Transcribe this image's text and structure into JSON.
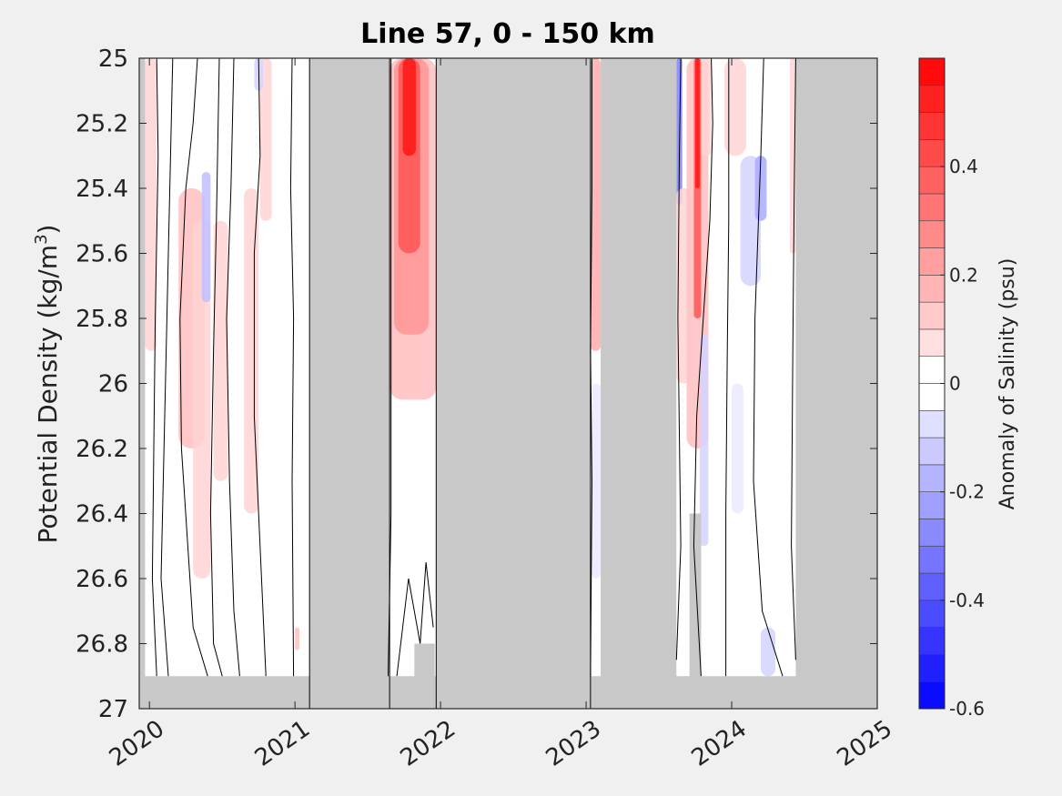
{
  "chart_data": {
    "type": "heatmap",
    "title": "Line 57, 0 - 150 km",
    "ylabel": "Potential Density (kg/m",
    "ylabel_sup": "3",
    "ylabel_close": ")",
    "xlim": [
      2019.93,
      2025.0
    ],
    "ylim": [
      25.0,
      27.0
    ],
    "y_reversed": true,
    "x_ticks": [
      2020,
      2021,
      2022,
      2023,
      2024,
      2025
    ],
    "x_tick_labels": [
      "2020",
      "2021",
      "2022",
      "2023",
      "2024",
      "2025"
    ],
    "y_ticks": [
      25,
      25.2,
      25.4,
      25.6,
      25.8,
      26,
      26.2,
      26.4,
      26.6,
      26.8,
      27
    ],
    "y_tick_labels": [
      "25",
      "25.2",
      "25.4",
      "25.6",
      "25.8",
      "26",
      "26.2",
      "26.4",
      "26.6",
      "26.8",
      "27"
    ],
    "colorbar": {
      "label": "Anomaly of Salinity (psu)",
      "range": [
        -0.6,
        0.6
      ],
      "step": 0.05,
      "ticks": [
        -0.6,
        -0.4,
        -0.2,
        0,
        0.2,
        0.4
      ],
      "tick_labels": [
        "-0.6",
        "-0.4",
        "-0.2",
        "0",
        "0.2",
        "0.4"
      ]
    },
    "colors": {
      "nodata": "#c8c8c8",
      "background": "#f0f0f0",
      "contour": "#000000"
    },
    "no_data_regions": [
      {
        "x": [
          2019.93,
          2025.0
        ],
        "y": [
          26.9,
          27.0
        ]
      },
      {
        "x": [
          2021.1,
          2021.65
        ],
        "y": [
          25.0,
          27.0
        ]
      },
      {
        "x": [
          2021.97,
          2023.03
        ],
        "y": [
          25.0,
          27.0
        ]
      },
      {
        "x": [
          2023.1,
          2023.62
        ],
        "y": [
          25.0,
          27.0
        ]
      },
      {
        "x": [
          2024.44,
          2025.0
        ],
        "y": [
          25.0,
          27.0
        ]
      },
      {
        "x": [
          2019.93,
          2019.97
        ],
        "y": [
          25.0,
          27.0
        ]
      },
      {
        "x": [
          2023.71,
          2023.79
        ],
        "y": [
          26.4,
          27.0
        ]
      },
      {
        "x": [
          2021.82,
          2021.96
        ],
        "y": [
          26.8,
          27.0
        ]
      }
    ],
    "anomaly_patches": [
      {
        "x": [
          2019.97,
          2020.05
        ],
        "y": [
          25.0,
          25.9
        ],
        "value": 0.1
      },
      {
        "x": [
          2020.2,
          2020.38
        ],
        "y": [
          25.4,
          26.2
        ],
        "value": 0.15
      },
      {
        "x": [
          2020.3,
          2020.42
        ],
        "y": [
          25.5,
          26.6
        ],
        "value": 0.1
      },
      {
        "x": [
          2020.36,
          2020.42
        ],
        "y": [
          25.35,
          25.75
        ],
        "value": -0.15
      },
      {
        "x": [
          2020.44,
          2020.54
        ],
        "y": [
          25.5,
          26.3
        ],
        "value": 0.1
      },
      {
        "x": [
          2020.65,
          2020.75
        ],
        "y": [
          25.4,
          26.4
        ],
        "value": 0.1
      },
      {
        "x": [
          2020.76,
          2020.84
        ],
        "y": [
          25.0,
          25.5
        ],
        "value": 0.1
      },
      {
        "x": [
          2020.72,
          2020.78
        ],
        "y": [
          25.0,
          25.1
        ],
        "value": -0.1
      },
      {
        "x": [
          2021.0,
          2021.03
        ],
        "y": [
          26.75,
          26.82
        ],
        "value": 0.15
      },
      {
        "x": [
          2021.65,
          2021.97
        ],
        "y": [
          25.0,
          26.05
        ],
        "value": 0.15
      },
      {
        "x": [
          2021.68,
          2021.92
        ],
        "y": [
          25.0,
          25.85
        ],
        "value": 0.25
      },
      {
        "x": [
          2021.71,
          2021.86
        ],
        "y": [
          25.0,
          25.6
        ],
        "value": 0.4
      },
      {
        "x": [
          2021.74,
          2021.83
        ],
        "y": [
          25.0,
          25.3
        ],
        "value": 0.55
      },
      {
        "x": [
          2023.03,
          2023.1
        ],
        "y": [
          25.0,
          25.9
        ],
        "value": 0.2
      },
      {
        "x": [
          2023.04,
          2023.1
        ],
        "y": [
          26.0,
          26.6
        ],
        "value": -0.05
      },
      {
        "x": [
          2023.62,
          2023.66
        ],
        "y": [
          25.0,
          25.45
        ],
        "value": -0.3
      },
      {
        "x": [
          2023.62,
          2023.72
        ],
        "y": [
          25.4,
          26.0
        ],
        "value": 0.1
      },
      {
        "x": [
          2023.69,
          2023.84
        ],
        "y": [
          25.0,
          26.2
        ],
        "value": 0.15
      },
      {
        "x": [
          2023.74,
          2023.79
        ],
        "y": [
          25.0,
          25.8
        ],
        "value": 0.4
      },
      {
        "x": [
          2023.75,
          2023.78
        ],
        "y": [
          25.0,
          25.4
        ],
        "value": 0.55
      },
      {
        "x": [
          2023.79,
          2023.86
        ],
        "y": [
          25.0,
          25.3
        ],
        "value": 0.1
      },
      {
        "x": [
          2023.78,
          2023.84
        ],
        "y": [
          25.85,
          26.5
        ],
        "value": -0.1
      },
      {
        "x": [
          2023.95,
          2024.1
        ],
        "y": [
          25.0,
          25.3
        ],
        "value": 0.1
      },
      {
        "x": [
          2024.06,
          2024.2
        ],
        "y": [
          25.3,
          25.7
        ],
        "value": -0.1
      },
      {
        "x": [
          2024.16,
          2024.24
        ],
        "y": [
          25.3,
          25.5
        ],
        "value": -0.2
      },
      {
        "x": [
          2024.0,
          2024.08
        ],
        "y": [
          26.0,
          26.4
        ],
        "value": -0.05
      },
      {
        "x": [
          2024.2,
          2024.3
        ],
        "y": [
          26.75,
          26.9
        ],
        "value": -0.1
      },
      {
        "x": [
          2024.4,
          2024.44
        ],
        "y": [
          25.0,
          25.6
        ],
        "value": 0.1
      }
    ],
    "contour_level": 0,
    "zero_contours": [
      [
        [
          2020.05,
          26.9
        ],
        [
          2020.02,
          26.6
        ],
        [
          2020.03,
          26.2
        ],
        [
          2020.04,
          25.8
        ],
        [
          2020.06,
          25.3
        ],
        [
          2020.05,
          25.0
        ]
      ],
      [
        [
          2020.13,
          26.9
        ],
        [
          2020.08,
          26.6
        ],
        [
          2020.1,
          26.2
        ],
        [
          2020.12,
          25.8
        ],
        [
          2020.14,
          25.4
        ],
        [
          2020.16,
          25.0
        ]
      ],
      [
        [
          2020.4,
          26.9
        ],
        [
          2020.3,
          26.75
        ],
        [
          2020.22,
          26.2
        ],
        [
          2020.21,
          25.8
        ],
        [
          2020.25,
          25.4
        ],
        [
          2020.3,
          25.2
        ],
        [
          2020.33,
          25.0
        ]
      ],
      [
        [
          2020.5,
          26.9
        ],
        [
          2020.44,
          26.8
        ],
        [
          2020.42,
          26.4
        ],
        [
          2020.44,
          25.9
        ],
        [
          2020.46,
          25.5
        ],
        [
          2020.48,
          25.0
        ]
      ],
      [
        [
          2020.62,
          26.9
        ],
        [
          2020.58,
          26.7
        ],
        [
          2020.55,
          26.3
        ],
        [
          2020.53,
          25.8
        ],
        [
          2020.56,
          25.4
        ],
        [
          2020.58,
          25.0
        ]
      ],
      [
        [
          2020.8,
          26.9
        ],
        [
          2020.76,
          26.5
        ],
        [
          2020.72,
          26.1
        ],
        [
          2020.72,
          25.6
        ],
        [
          2020.76,
          25.3
        ],
        [
          2020.75,
          25.0
        ]
      ],
      [
        [
          2020.98,
          25.0
        ],
        [
          2020.97,
          25.4
        ],
        [
          2020.99,
          25.8
        ],
        [
          2020.98,
          26.3
        ],
        [
          2020.99,
          26.9
        ]
      ],
      [
        [
          2021.64,
          26.9
        ],
        [
          2021.66,
          26.4
        ],
        [
          2021.66,
          25.6
        ],
        [
          2021.66,
          25.0
        ]
      ],
      [
        [
          2021.7,
          26.9
        ],
        [
          2021.78,
          26.6
        ],
        [
          2021.86,
          26.8
        ],
        [
          2021.9,
          26.55
        ],
        [
          2021.95,
          26.75
        ]
      ],
      [
        [
          2023.03,
          26.9
        ],
        [
          2023.04,
          26.3
        ],
        [
          2023.03,
          25.9
        ],
        [
          2023.04,
          25.4
        ],
        [
          2023.04,
          25.0
        ]
      ],
      [
        [
          2023.62,
          26.85
        ],
        [
          2023.65,
          26.5
        ],
        [
          2023.63,
          25.8
        ],
        [
          2023.64,
          25.3
        ],
        [
          2023.65,
          25.0
        ]
      ],
      [
        [
          2023.79,
          26.9
        ],
        [
          2023.74,
          26.5
        ],
        [
          2023.76,
          26.1
        ],
        [
          2023.82,
          25.7
        ],
        [
          2023.85,
          25.5
        ],
        [
          2023.87,
          25.2
        ],
        [
          2023.86,
          25.0
        ]
      ],
      [
        [
          2023.96,
          26.9
        ],
        [
          2023.96,
          26.4
        ],
        [
          2023.97,
          25.9
        ],
        [
          2023.98,
          25.5
        ],
        [
          2023.98,
          25.0
        ]
      ],
      [
        [
          2024.35,
          26.9
        ],
        [
          2024.28,
          26.8
        ],
        [
          2024.21,
          26.7
        ],
        [
          2024.15,
          26.3
        ],
        [
          2024.16,
          25.8
        ],
        [
          2024.2,
          25.3
        ],
        [
          2024.22,
          25.0
        ]
      ],
      [
        [
          2024.44,
          26.85
        ],
        [
          2024.41,
          26.5
        ],
        [
          2024.42,
          25.9
        ],
        [
          2024.43,
          25.4
        ],
        [
          2024.44,
          25.0
        ]
      ]
    ]
  }
}
